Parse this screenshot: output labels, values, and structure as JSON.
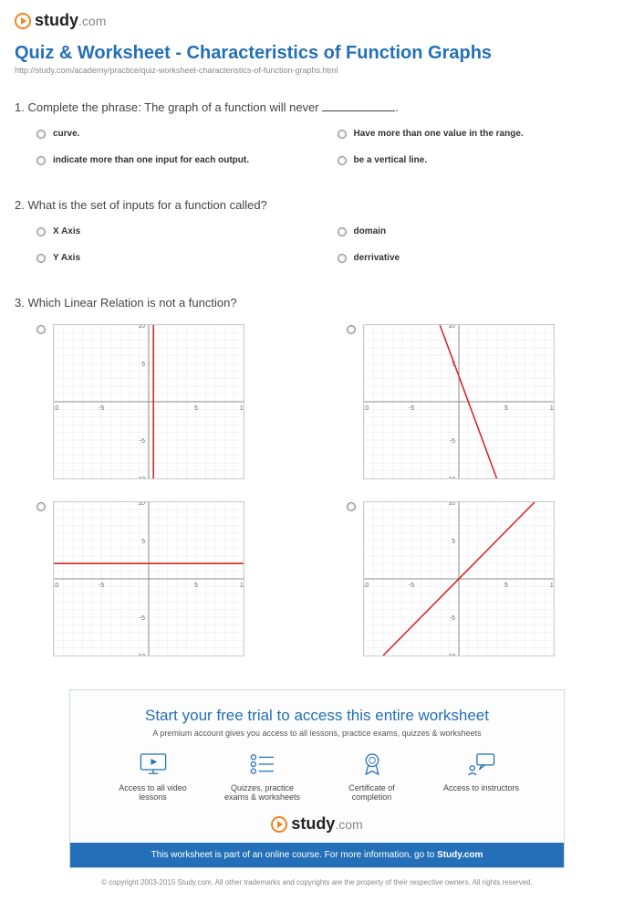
{
  "brand": {
    "name": "study",
    "tld": ".com"
  },
  "title": "Quiz & Worksheet - Characteristics of Function Graphs",
  "url": "http://study.com/academy/practice/quiz-worksheet-characteristics-of-function-graphs.html",
  "q1": {
    "num": "1.",
    "text_pre": "Complete the phrase: The graph of a function will never ",
    "text_post": ".",
    "opts": [
      "curve.",
      "Have more than one value in the range.",
      "indicate more than one input for each output.",
      "be a vertical line."
    ]
  },
  "q2": {
    "num": "2.",
    "text": "What is the set of inputs for a function called?",
    "opts": [
      "X Axis",
      "domain",
      "Y Axis",
      "derrivative"
    ]
  },
  "q3": {
    "num": "3.",
    "text": "Which Linear Relation is not a function?"
  },
  "graph": {
    "axis_range": [
      -10,
      10
    ],
    "ticks": [
      -10,
      -5,
      5,
      10
    ],
    "tick_fontsize": 7,
    "grid_color": "#e8e8e8",
    "axis_color": "#888888",
    "line_color": "#d62728",
    "line_width": 1.6,
    "lines": {
      "a": {
        "type": "vertical",
        "x": 0.5
      },
      "b": {
        "type": "slope",
        "points": [
          [
            -2,
            10
          ],
          [
            4,
            -10
          ]
        ]
      },
      "c": {
        "type": "horizontal",
        "y": 2
      },
      "d": {
        "type": "slope",
        "points": [
          [
            -8,
            -10
          ],
          [
            8,
            10
          ]
        ]
      }
    }
  },
  "cta": {
    "title": "Start your free trial to access this entire worksheet",
    "sub": "A premium account gives you access to all lessons, practice exams, quizzes & worksheets",
    "features": [
      "Access to all video lessons",
      "Quizzes, practice exams & worksheets",
      "Certificate of completion",
      "Access to instructors"
    ],
    "bar_pre": "This worksheet is part of an online course. For more information, go to ",
    "bar_link": "Study.com"
  },
  "copyright": "© copyright 2003-2015 Study.com. All other trademarks and copyrights are the property of their respective owners.\nAll rights reserved."
}
